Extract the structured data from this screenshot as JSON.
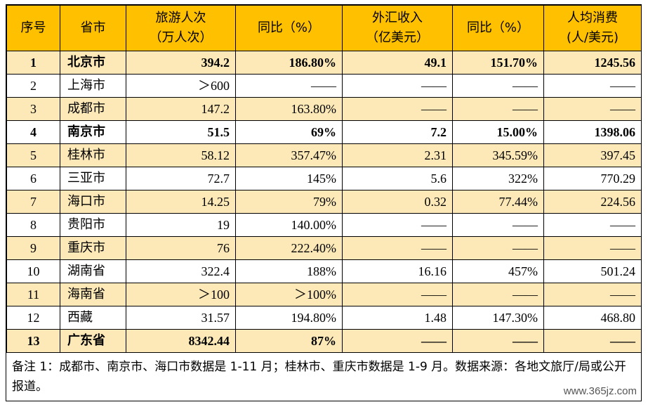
{
  "headers": [
    [
      "序号",
      ""
    ],
    [
      "省市",
      ""
    ],
    [
      "旅游人次",
      "（万人次）"
    ],
    [
      "同比（%）",
      ""
    ],
    [
      "外汇收入",
      "（亿美元）"
    ],
    [
      "同比（%）",
      ""
    ],
    [
      "人均消费",
      "(人/美元)"
    ]
  ],
  "rows": [
    {
      "bold": true,
      "cells": [
        "1",
        "北京市",
        "394.2",
        "186.80%",
        "49.1",
        "151.70%",
        "1245.56"
      ]
    },
    {
      "bold": false,
      "cells": [
        "2",
        "上海市",
        "＞600",
        "——",
        "——",
        "——",
        "——"
      ]
    },
    {
      "bold": false,
      "cells": [
        "3",
        "成都市",
        "147.2",
        "163.80%",
        "——",
        "——",
        "——"
      ]
    },
    {
      "bold": true,
      "cells": [
        "4",
        "南京市",
        "51.5",
        "69%",
        "7.2",
        "15.00%",
        "1398.06"
      ]
    },
    {
      "bold": false,
      "cells": [
        "5",
        "桂林市",
        "58.12",
        "357.47%",
        "2.31",
        "345.59%",
        "397.45"
      ]
    },
    {
      "bold": false,
      "cells": [
        "6",
        "三亚市",
        "72.7",
        "145%",
        "5.6",
        "322%",
        "770.29"
      ]
    },
    {
      "bold": false,
      "cells": [
        "7",
        "海口市",
        "14.25",
        "79%",
        "0.32",
        "77.44%",
        "224.56"
      ]
    },
    {
      "bold": false,
      "cells": [
        "8",
        "贵阳市",
        "19",
        "140.00%",
        "——",
        "——",
        "——"
      ]
    },
    {
      "bold": false,
      "cells": [
        "9",
        "重庆市",
        "76",
        "222.40%",
        "——",
        "——",
        "——"
      ]
    },
    {
      "bold": false,
      "cells": [
        "10",
        "湖南省",
        "322.4",
        "188%",
        "16.16",
        "457%",
        "501.24"
      ]
    },
    {
      "bold": false,
      "cells": [
        "11",
        "海南省",
        "＞100",
        "＞100%",
        "——",
        "——",
        "——"
      ]
    },
    {
      "bold": false,
      "cells": [
        "12",
        "西藏",
        "31.57",
        "194.80%",
        "1.48",
        "147.30%",
        "468.80"
      ]
    },
    {
      "bold": true,
      "cells": [
        "13",
        "广东省",
        "8342.44",
        "87%",
        "——",
        "——",
        "——"
      ]
    }
  ],
  "note": "备注 1：成都市、南京市、海口市数据是 1-11 月；桂林市、重庆市数据是 1-9 月。数据来源：各地文旅厅/局或公开报道。",
  "watermark": "www.365jz.com",
  "colors": {
    "header_bg": "#ffc000",
    "odd_row_bg": "#fde9b8"
  }
}
